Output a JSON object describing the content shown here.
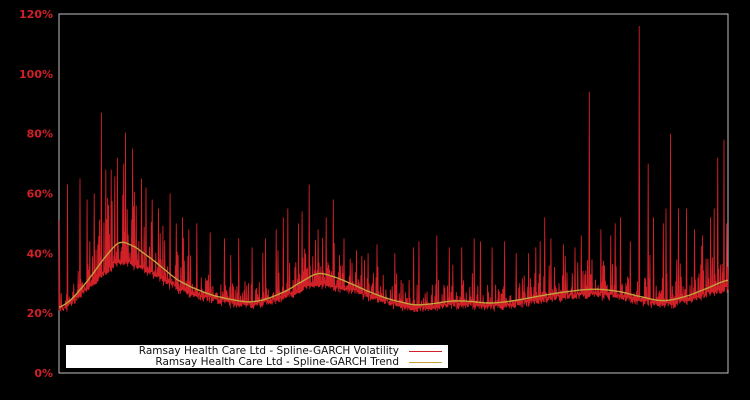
{
  "chart": {
    "background": "#000000",
    "plot_border_color": "#bfbfbf",
    "tick_label_color": "#d02028",
    "legend": {
      "background": "#ffffff",
      "text_color": "#111111"
    }
  },
  "chart_data": {
    "type": "line",
    "title": "",
    "xlabel": "",
    "ylabel": "",
    "ylim": [
      0,
      120
    ],
    "grid": false,
    "legend_position": "inside-bottom-left",
    "yticks": [
      {
        "value": 0,
        "label": "0%"
      },
      {
        "value": 20,
        "label": "20%"
      },
      {
        "value": 40,
        "label": "40%"
      },
      {
        "value": 60,
        "label": "60%"
      },
      {
        "value": 80,
        "label": "80%"
      },
      {
        "value": 100,
        "label": "100%"
      },
      {
        "value": 120,
        "label": "120%"
      }
    ],
    "series": [
      {
        "name": "Ramsay Health Care Ltd - Spline-GARCH Volatility",
        "color": "#d02028",
        "kind": "dense daily volatility: noisy band hugging just below trend with frequent thin upward spikes",
        "noise_seed": 987654321,
        "major_spikes_x_pct": [
          [
            0.0,
            51
          ],
          [
            0.012,
            63
          ],
          [
            0.031,
            65
          ],
          [
            0.042,
            58
          ],
          [
            0.052,
            60
          ],
          [
            0.063,
            87
          ],
          [
            0.07,
            68
          ],
          [
            0.078,
            68
          ],
          [
            0.087,
            72
          ],
          [
            0.096,
            70
          ],
          [
            0.109,
            75
          ],
          [
            0.123,
            65
          ],
          [
            0.13,
            62
          ],
          [
            0.139,
            58
          ],
          [
            0.148,
            55
          ],
          [
            0.166,
            60
          ],
          [
            0.175,
            50
          ],
          [
            0.184,
            52
          ],
          [
            0.194,
            48
          ],
          [
            0.205,
            50
          ],
          [
            0.226,
            47
          ],
          [
            0.247,
            45
          ],
          [
            0.268,
            45
          ],
          [
            0.289,
            42
          ],
          [
            0.308,
            45
          ],
          [
            0.324,
            48
          ],
          [
            0.335,
            52
          ],
          [
            0.342,
            55
          ],
          [
            0.357,
            50
          ],
          [
            0.363,
            54
          ],
          [
            0.374,
            63
          ],
          [
            0.387,
            48
          ],
          [
            0.399,
            52
          ],
          [
            0.41,
            58
          ],
          [
            0.425,
            45
          ],
          [
            0.444,
            41
          ],
          [
            0.462,
            40
          ],
          [
            0.475,
            43
          ],
          [
            0.502,
            40
          ],
          [
            0.529,
            42
          ],
          [
            0.538,
            44
          ],
          [
            0.565,
            46
          ],
          [
            0.583,
            42
          ],
          [
            0.601,
            42
          ],
          [
            0.62,
            45
          ],
          [
            0.629,
            44
          ],
          [
            0.647,
            42
          ],
          [
            0.665,
            44
          ],
          [
            0.683,
            40
          ],
          [
            0.701,
            40
          ],
          [
            0.719,
            44
          ],
          [
            0.726,
            52
          ],
          [
            0.735,
            45
          ],
          [
            0.753,
            43
          ],
          [
            0.771,
            42
          ],
          [
            0.78,
            46
          ],
          [
            0.792,
            94
          ],
          [
            0.809,
            48
          ],
          [
            0.824,
            46
          ],
          [
            0.831,
            50
          ],
          [
            0.839,
            52
          ],
          [
            0.853,
            44
          ],
          [
            0.867,
            116
          ],
          [
            0.88,
            70
          ],
          [
            0.888,
            52
          ],
          [
            0.903,
            50
          ],
          [
            0.907,
            55
          ],
          [
            0.913,
            80
          ],
          [
            0.925,
            55
          ],
          [
            0.937,
            55
          ],
          [
            0.949,
            48
          ],
          [
            0.961,
            46
          ],
          [
            0.973,
            52
          ],
          [
            0.979,
            55
          ],
          [
            0.984,
            72
          ],
          [
            0.993,
            78
          ],
          [
            0.997,
            50
          ]
        ]
      },
      {
        "name": "Ramsay Health Care Ltd - Spline-GARCH Trend",
        "color": "#c3a13c",
        "kind": "smooth spline trend",
        "points_x_pct": [
          [
            0.0,
            22
          ],
          [
            0.015,
            24
          ],
          [
            0.03,
            27.5
          ],
          [
            0.05,
            33
          ],
          [
            0.07,
            39
          ],
          [
            0.09,
            43.5
          ],
          [
            0.11,
            42.5
          ],
          [
            0.13,
            39.5
          ],
          [
            0.15,
            36
          ],
          [
            0.175,
            31.5
          ],
          [
            0.2,
            28.5
          ],
          [
            0.23,
            26
          ],
          [
            0.26,
            24.5
          ],
          [
            0.285,
            23.8
          ],
          [
            0.31,
            24.8
          ],
          [
            0.34,
            27.5
          ],
          [
            0.365,
            30.8
          ],
          [
            0.387,
            33.2
          ],
          [
            0.41,
            32.2
          ],
          [
            0.435,
            30
          ],
          [
            0.46,
            27.5
          ],
          [
            0.49,
            25
          ],
          [
            0.51,
            23.8
          ],
          [
            0.532,
            22.8
          ],
          [
            0.56,
            23.2
          ],
          [
            0.585,
            24
          ],
          [
            0.61,
            24
          ],
          [
            0.645,
            23.4
          ],
          [
            0.68,
            24.2
          ],
          [
            0.72,
            25.8
          ],
          [
            0.76,
            27.2
          ],
          [
            0.8,
            28
          ],
          [
            0.835,
            27.3
          ],
          [
            0.87,
            25.5
          ],
          [
            0.903,
            24.2
          ],
          [
            0.935,
            25.5
          ],
          [
            0.965,
            28
          ],
          [
            1.0,
            31
          ]
        ]
      }
    ]
  }
}
